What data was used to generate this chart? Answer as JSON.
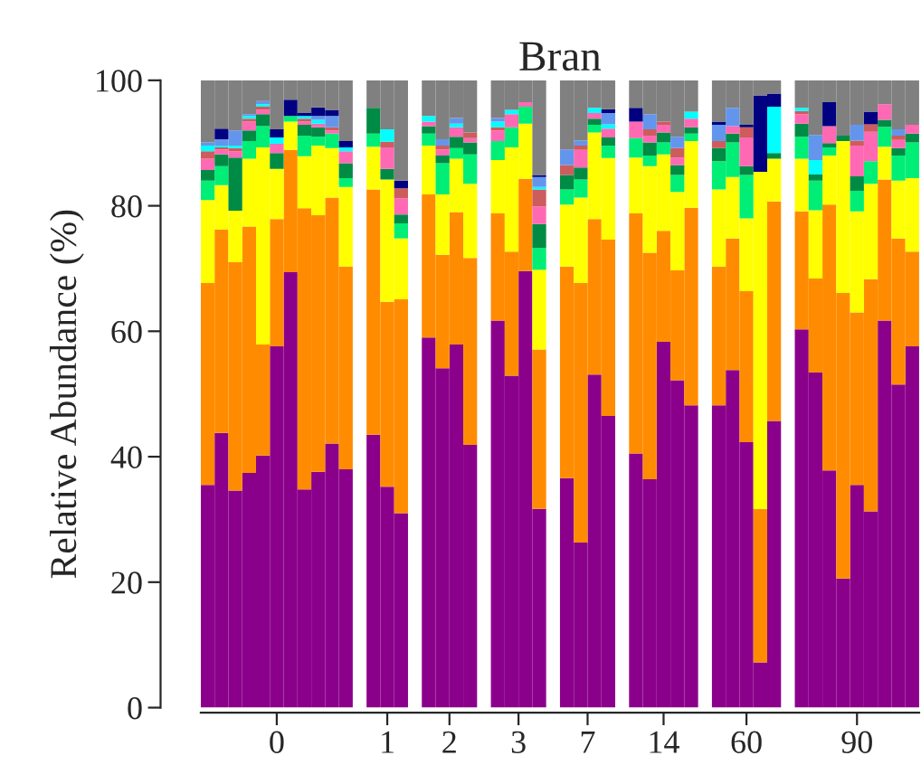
{
  "chart_data": {
    "type": "bar",
    "stacked": true,
    "title": "Bran",
    "ylabel": "Relative Abundance (%)",
    "categories": [
      null,
      null,
      null,
      null,
      null,
      "0",
      null,
      null,
      null,
      null,
      null,
      null,
      null,
      "1",
      null,
      null,
      null,
      "2",
      null,
      null,
      null,
      null,
      "3",
      null,
      null,
      null,
      null,
      "7",
      null,
      null,
      null,
      null,
      null,
      "14",
      null,
      null,
      null,
      null,
      null,
      "60",
      null,
      null,
      null,
      null,
      null,
      null,
      null,
      "90",
      null,
      null,
      null,
      null
    ],
    "ylim": [
      0,
      100
    ],
    "yticks": [
      0,
      20,
      40,
      60,
      80,
      100
    ],
    "grid": false,
    "legend": false,
    "series": [
      {
        "color": "#8b008b",
        "values": [
          35.5,
          43.8,
          34.6,
          37.4,
          40.2,
          57.6,
          69.4,
          34.8,
          37.6,
          42.1,
          38,
          null,
          43.5,
          35.2,
          31,
          null,
          59,
          54.1,
          57.9,
          41.9,
          null,
          61.7,
          52.9,
          69.6,
          31.7,
          null,
          36.6,
          26.3,
          53.1,
          46.5,
          null,
          40.5,
          36.4,
          58.3,
          52.2,
          48.2,
          null,
          48.2,
          53.8,
          42.3,
          7.2,
          45.7,
          null,
          60.3,
          53.4,
          37.8,
          20.6,
          35.5,
          31.3,
          61.7,
          51.5,
          57.6
        ]
      },
      {
        "color": "#ff8c00",
        "values": [
          32.2,
          32.4,
          36.4,
          39.3,
          17.7,
          20.3,
          19.5,
          44.8,
          40.9,
          39.2,
          32.3,
          null,
          39.1,
          29.5,
          34.1,
          null,
          22.8,
          18.1,
          21.1,
          29.8,
          null,
          17.1,
          19.8,
          14.7,
          25.4,
          null,
          33.7,
          41.4,
          24.8,
          28.1,
          null,
          38.3,
          36.1,
          17.7,
          17.5,
          31.5,
          null,
          22.1,
          21.0,
          24.1,
          24.5,
          35.0,
          null,
          18.8,
          15.0,
          42.4,
          45.5,
          27.5,
          37.0,
          22.5,
          23.3,
          15.1
        ]
      },
      {
        "color": "#ffff00",
        "values": [
          13.2,
          7.1,
          8.2,
          10.8,
          31.4,
          8.0,
          4.5,
          8.3,
          11.1,
          7.9,
          12.7,
          null,
          6.8,
          19.5,
          9.7,
          null,
          7.8,
          9.6,
          8.5,
          11.8,
          null,
          8.5,
          16.6,
          8.8,
          12.7,
          null,
          9.9,
          13.6,
          13.8,
          13.0,
          null,
          8.9,
          13.8,
          12.2,
          12.5,
          10.6,
          null,
          12.3,
          9.8,
          11.6,
          53.7,
          6.8,
          null,
          8.4,
          10.9,
          7.8,
          24.2,
          16.1,
          15.2,
          5.2,
          9.2,
          11.7
        ]
      },
      {
        "color": "#00ee76",
        "values": [
          3.1,
          3.0,
          0,
          2.8,
          3.4,
          0,
          0.9,
          3.3,
          1.4,
          2.3,
          1.4,
          null,
          2.1,
          0,
          2.4,
          null,
          1.9,
          5.0,
          1.7,
          4.7,
          null,
          3.0,
          3.2,
          2.7,
          3.5,
          null,
          2.4,
          2.9,
          1.2,
          2.0,
          null,
          3.1,
          1.7,
          1.9,
          2.7,
          1.2,
          null,
          4.5,
          5.5,
          6.9,
          0,
          0,
          null,
          3.5,
          4.7,
          1.3,
          0,
          3.3,
          3.6,
          3.2,
          4.0,
          5.7
        ]
      },
      {
        "color": "#008b45",
        "values": [
          1.7,
          1.9,
          8.5,
          1.7,
          1.9,
          2.5,
          0,
          1.7,
          1.5,
          0,
          2.4,
          null,
          4.1,
          1.7,
          1.4,
          null,
          1.2,
          1.2,
          1.8,
          1.9,
          null,
          0,
          0,
          0,
          3.8,
          null,
          2.3,
          1.9,
          1.0,
          1.3,
          null,
          0,
          2.1,
          1.6,
          1.6,
          1.0,
          null,
          2.1,
          1.4,
          1.4,
          0,
          0.9,
          null,
          2.1,
          1.0,
          0.7,
          0.9,
          2.3,
          0,
          1.1,
          1.2,
          1.4
        ]
      },
      {
        "color": "#ff69b4",
        "values": [
          1.8,
          0.8,
          1.0,
          1.4,
          0.7,
          1.5,
          0,
          0.5,
          0.6,
          0.5,
          1.9,
          null,
          0,
          3.4,
          2.6,
          null,
          0.7,
          1.0,
          1.5,
          0.7,
          null,
          1.7,
          2.1,
          0.7,
          2.8,
          null,
          0,
          2.8,
          0.9,
          1.4,
          null,
          2.6,
          1.1,
          1.2,
          1.2,
          1.4,
          null,
          0,
          1.2,
          4.6,
          0,
          0,
          null,
          1.5,
          0,
          2.7,
          0,
          4.9,
          4.7,
          2.5,
          1.3,
          1.4
        ]
      },
      {
        "color": "#cd5c5c",
        "values": [
          1.2,
          0.3,
          0.5,
          0.5,
          0.5,
          0,
          0,
          0.5,
          0,
          0.5,
          0,
          null,
          0,
          0.9,
          1.6,
          null,
          0,
          0.6,
          0,
          0.9,
          null,
          0.5,
          0,
          0,
          2.7,
          null,
          1.6,
          0.7,
          0,
          0,
          null,
          0,
          1.0,
          0.5,
          1.5,
          0,
          null,
          1.1,
          0,
          1.6,
          0,
          0,
          null,
          0.5,
          0,
          0,
          0,
          0.8,
          1.2,
          0,
          0.7,
          0
        ]
      },
      {
        "color": "#00ffff",
        "values": [
          0.9,
          0.3,
          0.4,
          0.4,
          0.4,
          1.0,
          0,
          0.4,
          0.6,
          0,
          0.6,
          null,
          0,
          2.0,
          0,
          null,
          0.9,
          0,
          0.6,
          0,
          null,
          0.9,
          0.7,
          0,
          0.4,
          null,
          0,
          0,
          0.8,
          0.7,
          null,
          0,
          0,
          0,
          0,
          1.1,
          null,
          0,
          0,
          0,
          0,
          7.4,
          null,
          0.5,
          2.3,
          0,
          0,
          0,
          0,
          0,
          0,
          0
        ]
      },
      {
        "color": "#6495ed",
        "values": [
          0.5,
          1.0,
          2.4,
          0.3,
          0.5,
          0,
          0,
          0,
          0.6,
          1.8,
          0,
          null,
          0,
          0,
          0,
          null,
          0,
          1.0,
          0.9,
          0,
          null,
          0.6,
          0,
          0,
          1.6,
          null,
          2.5,
          0.8,
          0,
          1.8,
          null,
          0,
          2.4,
          0,
          1.8,
          0,
          null,
          2.6,
          2.9,
          0,
          0,
          0,
          null,
          0,
          4.0,
          0,
          0,
          2.5,
          0,
          0,
          1.0,
          0
        ]
      },
      {
        "color": "#000080",
        "values": [
          0,
          1.7,
          0,
          0,
          0,
          1.3,
          2.6,
          0.5,
          1.4,
          1.0,
          1.0,
          null,
          0,
          0,
          1.2,
          null,
          0,
          0,
          0,
          0,
          null,
          0,
          0,
          0,
          0.3,
          null,
          0,
          0,
          0,
          0.6,
          null,
          2.2,
          0,
          0,
          0,
          0,
          null,
          0.5,
          0,
          0.4,
          12.2,
          2.1,
          null,
          0,
          0,
          3.8,
          0,
          0,
          2.0,
          0,
          0,
          0
        ]
      },
      {
        "color": "#808080",
        "values": [
          9.9,
          7.7,
          8.0,
          5.4,
          3.3,
          7.8,
          3.1,
          5.2,
          4.3,
          4.7,
          9.7,
          null,
          4.4,
          7.8,
          16,
          null,
          5.7,
          9.4,
          6.0,
          8.3,
          null,
          6.0,
          4.7,
          3.5,
          15.1,
          null,
          11,
          9.6,
          4.4,
          4.6,
          null,
          4.4,
          5.4,
          6.6,
          9.0,
          5.0,
          null,
          6.6,
          4.4,
          7.1,
          2.4,
          2.1,
          null,
          4.4,
          8.7,
          3.5,
          8.8,
          7.1,
          5.0,
          3.8,
          7.8,
          7.1
        ]
      }
    ]
  }
}
